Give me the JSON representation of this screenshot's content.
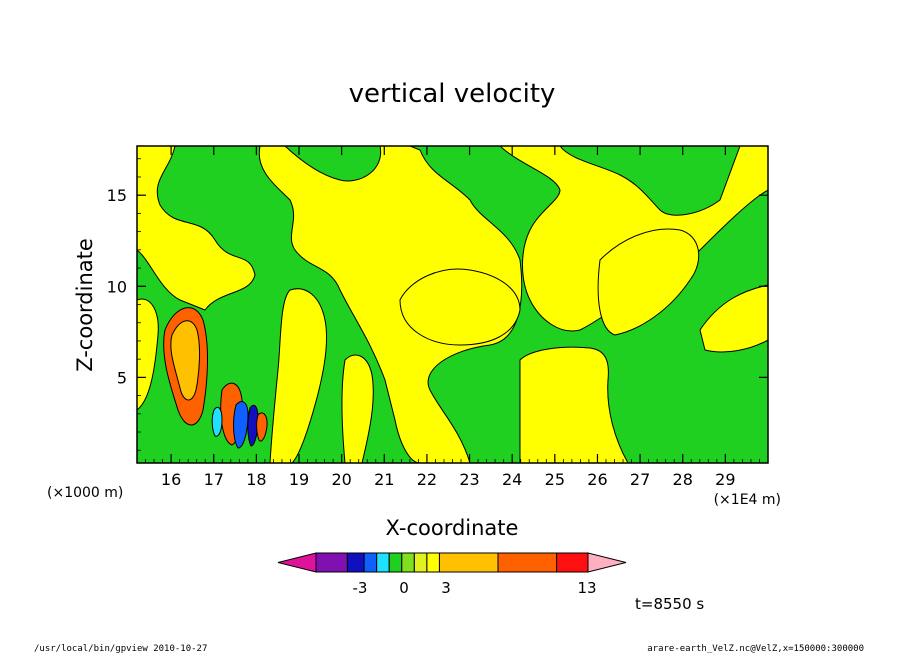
{
  "chart_data": {
    "type": "heatmap",
    "title": "vertical velocity",
    "xlabel": "X-coordinate",
    "ylabel": "Z-coordinate",
    "x_unit_left": "(×1000 m)",
    "x_unit_right": "(×1E4 m)",
    "xlim": [
      15.2,
      30.0
    ],
    "ylim": [
      0.3,
      17.7
    ],
    "x_ticks": [
      "16",
      "17",
      "18",
      "19",
      "20",
      "21",
      "22",
      "23",
      "24",
      "25",
      "26",
      "27",
      "28",
      "29"
    ],
    "x_tick_values": [
      16,
      17,
      18,
      19,
      20,
      21,
      22,
      23,
      24,
      25,
      26,
      27,
      28,
      29
    ],
    "y_ticks": [
      "5",
      "10",
      "15"
    ],
    "y_tick_values": [
      5,
      10,
      15
    ],
    "colorbar": {
      "colors": [
        "#e0119b",
        "#8010b0",
        "#1010c0",
        "#1060ff",
        "#20e0ff",
        "#20d020",
        "#80e020",
        "#e0f020",
        "#ffff00",
        "#ffc000",
        "#ff6000",
        "#ff1010",
        "#ff8080",
        "#ffb0c0"
      ],
      "labels": [
        "-3",
        "0",
        "3",
        "13"
      ],
      "label_values": [
        -3,
        0,
        3,
        13
      ]
    },
    "regions_summary": [
      {
        "name": "positive (orange) updraft core",
        "x": 16.3,
        "z": 5.5
      },
      {
        "name": "positive updraft",
        "x": 17.3,
        "z": 2.5
      },
      {
        "name": "mixed downdraft/updraft (blue/orange)",
        "x": 17.7,
        "z": 2.0
      }
    ]
  },
  "annotations": {
    "time": "t=8550 s",
    "footer_left": "/usr/local/bin/gpview   2010-10-27",
    "footer_right": "arare-earth_VelZ.nc@VelZ,x=150000:300000"
  }
}
